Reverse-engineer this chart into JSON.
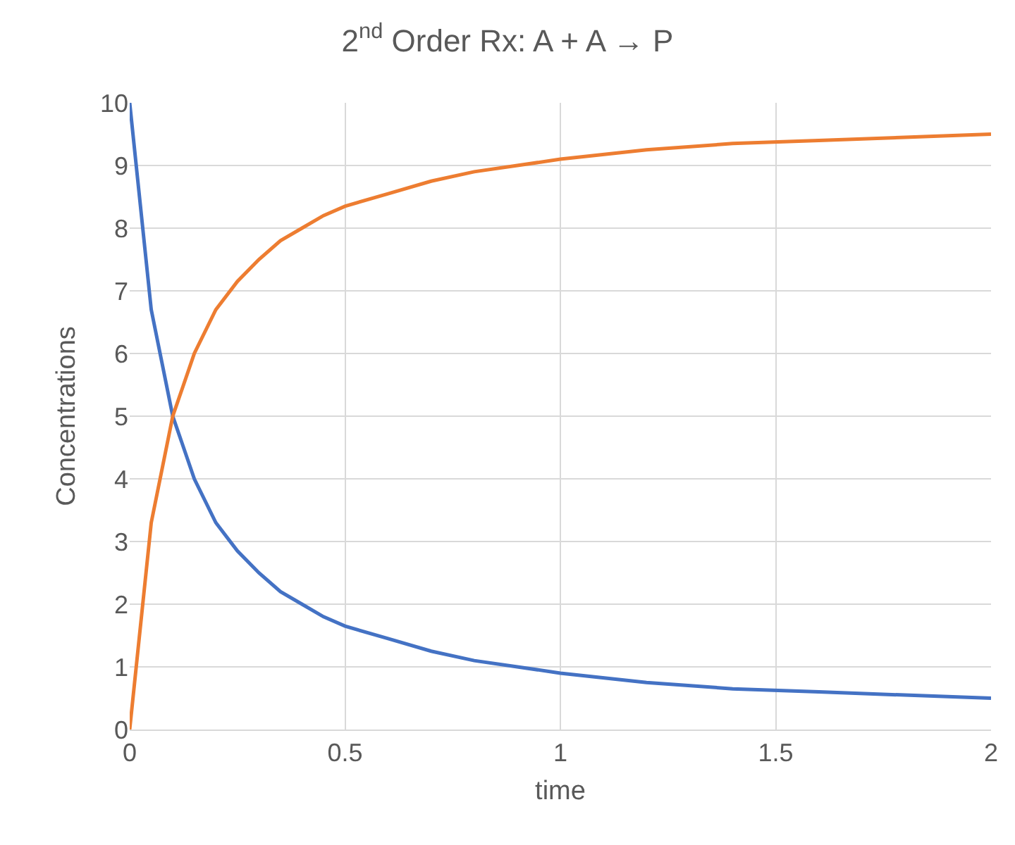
{
  "chart_data": {
    "type": "line",
    "title": "2$^{nd}$ Order Rx: A + A → P",
    "xlabel": "time",
    "ylabel": "Concentrations",
    "x": [
      0,
      0.05,
      0.1,
      0.15,
      0.2,
      0.25,
      0.3,
      0.35,
      0.4,
      0.45,
      0.5,
      0.6,
      0.7,
      0.8,
      0.9,
      1.0,
      1.2,
      1.4,
      1.6,
      1.8,
      2.0
    ],
    "series": [
      {
        "color": "#4472c4",
        "values": [
          10,
          6.7,
          5,
          4,
          3.3,
          2.85,
          2.5,
          2.2,
          2,
          1.8,
          1.65,
          1.45,
          1.25,
          1.1,
          1,
          0.9,
          0.75,
          0.65,
          0.6,
          0.55,
          0.5
        ]
      },
      {
        "color": "#ed7d31",
        "values": [
          0,
          3.3,
          5,
          6,
          6.7,
          7.15,
          7.5,
          7.8,
          8,
          8.2,
          8.35,
          8.55,
          8.75,
          8.9,
          9,
          9.1,
          9.25,
          9.35,
          9.4,
          9.45,
          9.5
        ]
      }
    ],
    "xlim": [
      0,
      2
    ],
    "xticks": [
      0,
      0.5,
      1,
      1.5,
      2
    ],
    "ylim": [
      0,
      10
    ],
    "yticks": [
      0,
      1,
      2,
      3,
      4,
      5,
      6,
      7,
      8,
      9,
      10
    ],
    "grid": true,
    "marker": "none",
    "line_style": "solid"
  }
}
